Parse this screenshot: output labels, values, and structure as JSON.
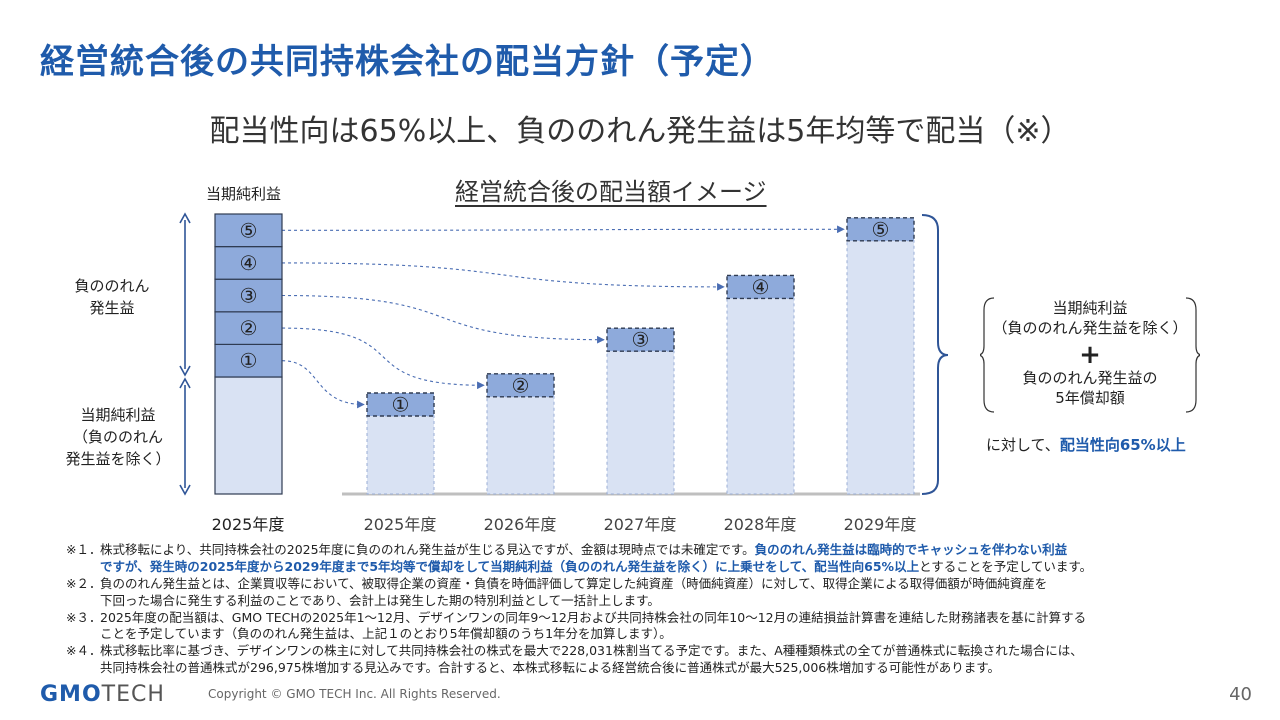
{
  "page": {
    "title": "経営統合後の共同持株会社の配当方針（予定）",
    "subtitle": "配当性向は65%以上、負ののれん発生益は5年均等で配当（※）",
    "chart_title": "経営統合後の配当額イメージ"
  },
  "left_stack": {
    "top_label": "当期純利益",
    "segments": [
      "①",
      "②",
      "③",
      "④",
      "⑤"
    ],
    "upper_brace_label": [
      "負ののれん",
      "発生益"
    ],
    "lower_brace_label": [
      "当期純利益",
      "（負ののれん",
      "発生益を除く）"
    ],
    "year": "2025年度"
  },
  "colors": {
    "title_blue": "#1f5bab",
    "segment_fill": "#8eaadb",
    "base_fill": "#d9e2f3",
    "dark_border": "#2f3b52",
    "arrow_blue": "#4a6db3"
  },
  "chart_data": {
    "type": "bar",
    "categories": [
      "2025年度",
      "2026年度",
      "2027年度",
      "2028年度",
      "2029年度"
    ],
    "base_values": [
      3.25,
      4.05,
      5.95,
      8.15,
      10.55
    ],
    "top_segment_labels": [
      "①",
      "②",
      "③",
      "④",
      "⑤"
    ]
  },
  "right_panel": {
    "line1": "当期純利益",
    "line2": "（負ののれん発生益を除く）",
    "plus": "+",
    "line3": "負ののれん発生益の",
    "line4": "5年償却額",
    "payout_prefix": "に対して、",
    "payout_highlight": "配当性向65%以上"
  },
  "notes": [
    {
      "mark": "※１．",
      "lines": [
        {
          "plain": "株式移転により、共同持株会社の2025年度に負ののれん発生益が生じる見込ですが、金額は現時点では未確定です。",
          "bold": "負ののれん発生益は臨時的でキャッシュを伴わない利益",
          "after": ""
        },
        {
          "plain": "",
          "bold": "ですが、発生時の2025年度から2029年度まで5年均等で償却をして当期純利益（負ののれん発生益を除く）に上乗せをして、配当性向65%以上",
          "after": "とすることを予定しています。"
        }
      ]
    },
    {
      "mark": "※２．",
      "lines": [
        {
          "plain": "負ののれん発生益とは、企業買収等において、被取得企業の資産・負債を時価評価して算定した純資産（時価純資産）に対して、取得企業による取得価額が時価純資産を",
          "bold": "",
          "after": ""
        },
        {
          "plain": "下回った場合に発生する利益のことであり、会計上は発生した期の特別利益として一括計上します。",
          "bold": "",
          "after": ""
        }
      ]
    },
    {
      "mark": "※３．",
      "lines": [
        {
          "plain": "2025年度の配当額は、GMO TECHの2025年1～12月、デザインワンの同年9～12月および共同持株会社の同年10～12月の連結損益計算書を連結した財務諸表を基に計算する",
          "bold": "",
          "after": ""
        },
        {
          "plain": "ことを予定しています（負ののれん発生益は、上記１のとおり5年償却額のうち1年分を加算します）。",
          "bold": "",
          "after": ""
        }
      ]
    },
    {
      "mark": "※４．",
      "lines": [
        {
          "plain": "株式移転比率に基づき、デザインワンの株主に対して共同持株会社の株式を最大で228,031株割当てる予定です。また、A種種類株式の全てが普通株式に転換された場合には、",
          "bold": "",
          "after": ""
        },
        {
          "plain": "共同持株会社の普通株式が296,975株増加する見込みです。合計すると、本株式移転による経営統合後に普通株式が最大525,006株増加する可能性があります。",
          "bold": "",
          "after": ""
        }
      ]
    }
  ],
  "footer": {
    "logo_gmo": "GMO",
    "logo_tech": "TECH",
    "copyright": "Copyright © GMO TECH Inc. All Rights Reserved.",
    "page_number": "40"
  }
}
